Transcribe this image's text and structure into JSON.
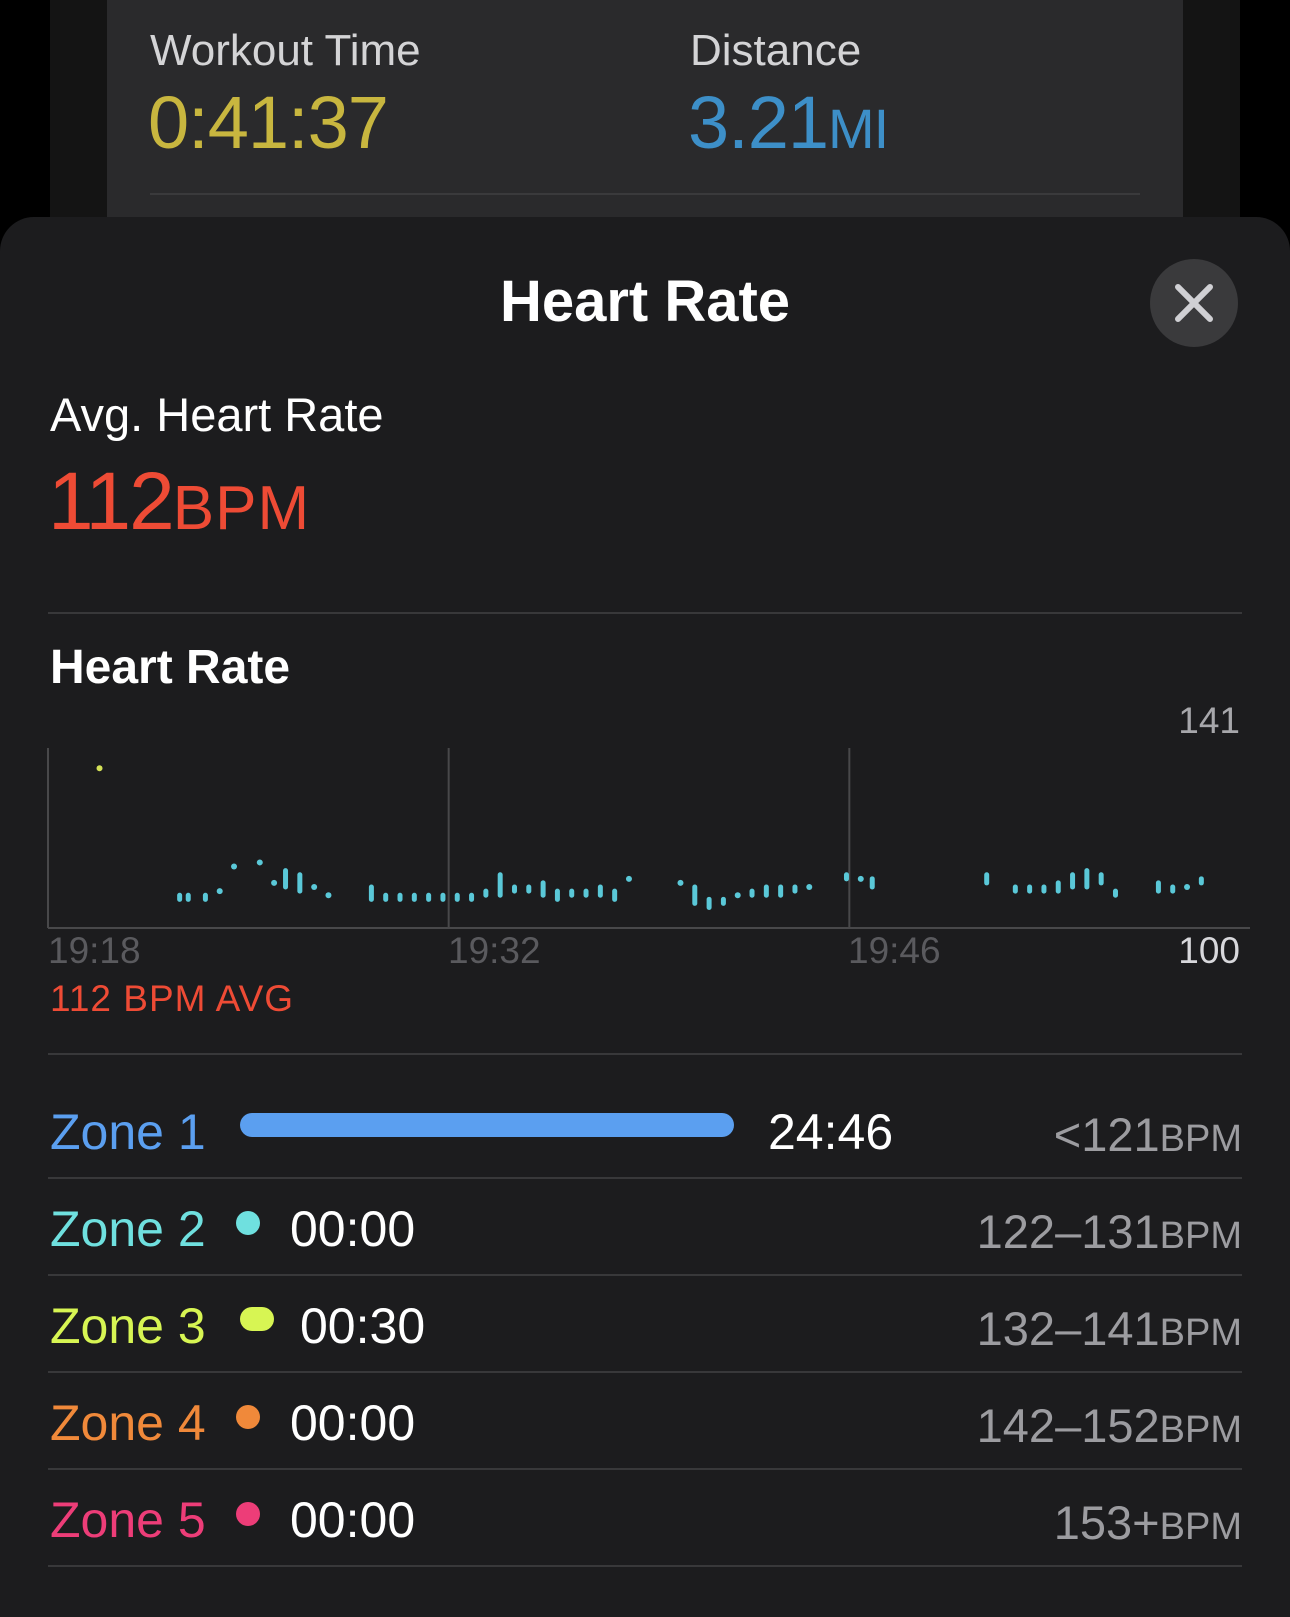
{
  "summary": {
    "workout_time": {
      "label": "Workout Time",
      "value": "0:41:37",
      "color": "#c8b63f"
    },
    "distance": {
      "label": "Distance",
      "value": "3.21",
      "unit": "MI",
      "color": "#3d8fc8"
    }
  },
  "sheet": {
    "title": "Heart Rate",
    "close_icon": "close-icon"
  },
  "avg": {
    "label": "Avg. Heart Rate",
    "value": "112",
    "unit": "BPM",
    "color": "#ee4b35"
  },
  "chart": {
    "title": "Heart Rate",
    "avg_label": "112 BPM AVG"
  },
  "chart_data": {
    "type": "scatter",
    "title": "Heart Rate",
    "x_ticks": [
      "19:18",
      "19:32",
      "19:46"
    ],
    "y_ticks": [
      "141",
      "100"
    ],
    "ylim": [
      100,
      141
    ],
    "xlim_minutes": [
      0,
      42
    ],
    "grid": "vertical lines at x ticks",
    "colors": {
      "normal": "#5ac8d8",
      "elevated": "#d4e157"
    },
    "series": [
      {
        "points": [
          [
            1.8,
            139,
            139
          ],
          [
            4.6,
            107,
            108
          ],
          [
            4.9,
            107,
            108
          ],
          [
            5.5,
            107,
            108
          ],
          [
            6.0,
            109,
            109
          ],
          [
            6.5,
            115,
            115
          ],
          [
            7.4,
            116,
            116
          ],
          [
            7.9,
            111,
            111
          ],
          [
            8.3,
            110,
            114
          ],
          [
            8.8,
            109,
            113
          ],
          [
            9.3,
            110,
            110
          ],
          [
            9.8,
            108,
            108
          ],
          [
            11.3,
            107,
            110
          ],
          [
            11.8,
            107,
            108
          ],
          [
            12.3,
            107,
            108
          ],
          [
            12.8,
            107,
            108
          ],
          [
            13.3,
            107,
            108
          ],
          [
            13.8,
            107,
            108
          ],
          [
            14.3,
            107,
            108
          ],
          [
            14.8,
            107,
            108
          ],
          [
            15.3,
            108,
            109
          ],
          [
            15.8,
            108,
            113
          ],
          [
            16.3,
            109,
            110
          ],
          [
            16.8,
            109,
            110
          ],
          [
            17.3,
            108,
            111
          ],
          [
            17.8,
            107,
            109
          ],
          [
            18.3,
            108,
            109
          ],
          [
            18.8,
            108,
            109
          ],
          [
            19.3,
            108,
            110
          ],
          [
            19.8,
            107,
            109
          ],
          [
            20.3,
            112,
            112
          ],
          [
            22.1,
            111,
            111
          ],
          [
            22.6,
            106,
            110
          ],
          [
            23.1,
            105,
            107
          ],
          [
            23.6,
            106,
            107
          ],
          [
            24.1,
            108,
            108
          ],
          [
            24.6,
            108,
            109
          ],
          [
            25.1,
            108,
            110
          ],
          [
            25.6,
            108,
            110
          ],
          [
            26.1,
            109,
            110
          ],
          [
            26.6,
            110,
            110
          ],
          [
            27.9,
            112,
            113
          ],
          [
            28.4,
            112,
            112
          ],
          [
            28.8,
            110,
            112
          ],
          [
            32.8,
            111,
            113
          ],
          [
            33.8,
            109,
            110
          ],
          [
            34.3,
            109,
            110
          ],
          [
            34.8,
            109,
            110
          ],
          [
            35.3,
            109,
            111
          ],
          [
            35.8,
            110,
            113
          ],
          [
            36.3,
            110,
            114
          ],
          [
            36.8,
            111,
            113
          ],
          [
            37.3,
            108,
            109
          ],
          [
            38.8,
            109,
            111
          ],
          [
            39.3,
            109,
            110
          ],
          [
            39.8,
            110,
            110
          ],
          [
            40.3,
            111,
            112
          ]
        ]
      }
    ]
  },
  "zones": [
    {
      "name": "Zone 1",
      "time": "24:46",
      "range": "<121",
      "unit": "BPM",
      "color": "#5b9ff0",
      "share": 0.98
    },
    {
      "name": "Zone 2",
      "time": "00:00",
      "range": "122–131",
      "unit": "BPM",
      "color": "#6fe0df",
      "share": 0
    },
    {
      "name": "Zone 3",
      "time": "00:30",
      "range": "132–141",
      "unit": "BPM",
      "color": "#d7f553",
      "share": 0.02
    },
    {
      "name": "Zone 4",
      "time": "00:00",
      "range": "142–152",
      "unit": "BPM",
      "color": "#f0893a",
      "share": 0
    },
    {
      "name": "Zone 5",
      "time": "00:00",
      "range": "153+",
      "unit": "BPM",
      "color": "#ed3d78",
      "share": 0
    }
  ]
}
